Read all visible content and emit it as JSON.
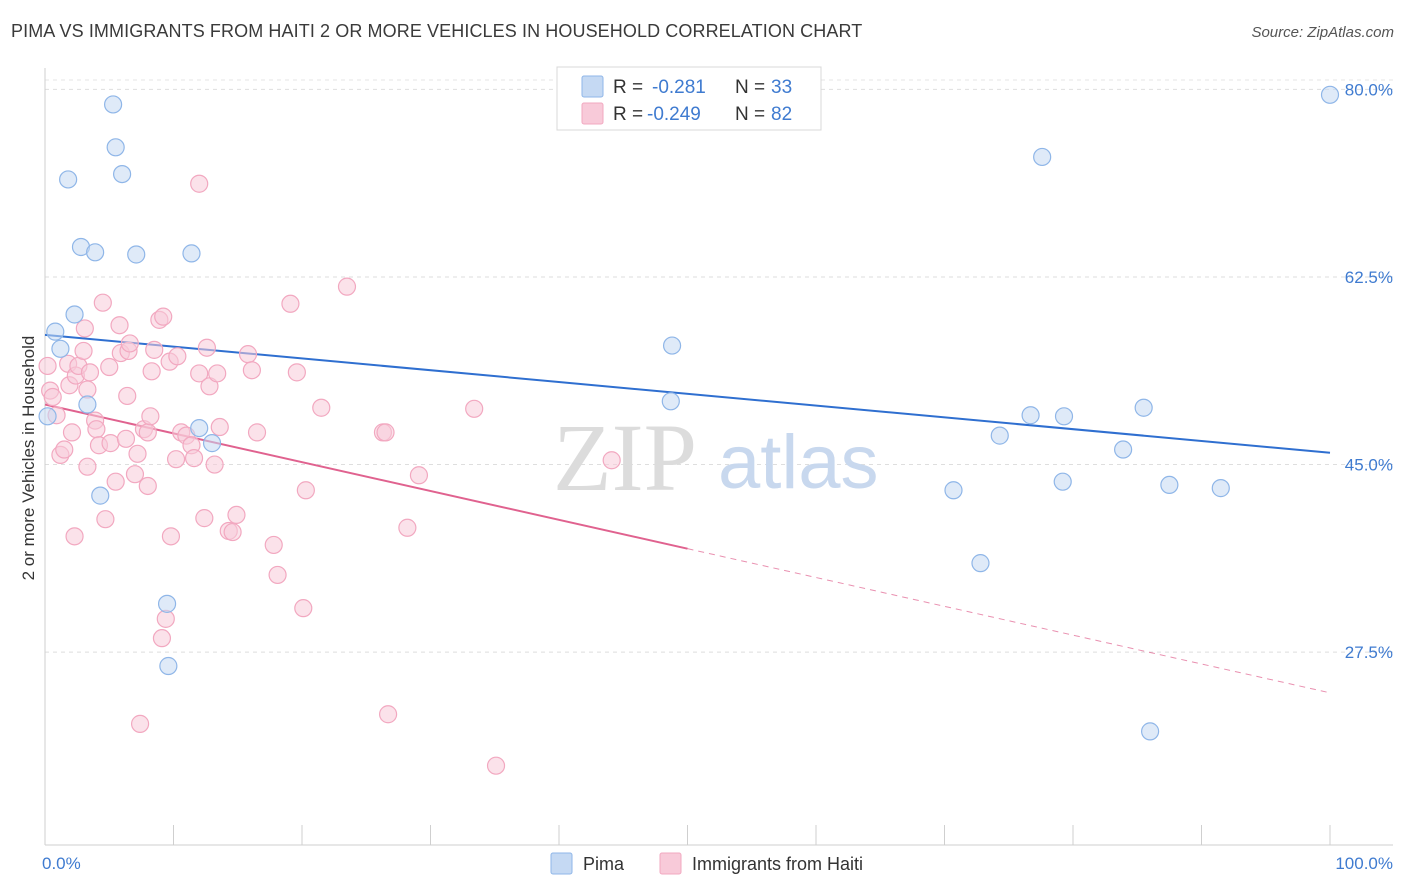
{
  "title": "PIMA VS IMMIGRANTS FROM HAITI 2 OR MORE VEHICLES IN HOUSEHOLD CORRELATION CHART",
  "source": "Source: ZipAtlas.com",
  "watermark": {
    "zip": "ZIP",
    "atlas": "atlas"
  },
  "chart_data": {
    "type": "scatter",
    "xlabel": "",
    "ylabel": "2 or more Vehicles in Household",
    "xlim": [
      0,
      100
    ],
    "ylim": [
      9.5,
      82
    ],
    "x_ticks": [
      {
        "value": 0,
        "label": "0.0%"
      },
      {
        "value": 100,
        "label": "100.0%"
      }
    ],
    "y_ticks": [
      {
        "value": 27.5,
        "label": "27.5%"
      },
      {
        "value": 45.0,
        "label": "45.0%"
      },
      {
        "value": 62.5,
        "label": "62.5%"
      },
      {
        "value": 80.0,
        "label": "80.0%"
      }
    ],
    "grid": true,
    "legend_position": "top-center",
    "legend": [
      {
        "r_label": "R =",
        "r_value": "-0.281",
        "n_label": "N =",
        "n_value": "33"
      },
      {
        "r_label": "R =",
        "r_value": "-0.249",
        "n_label": "N =",
        "n_value": "82"
      }
    ],
    "series": [
      {
        "name": "Pima",
        "color": "#8fb6e8",
        "fill": "#c5d9f3",
        "line_color": "#2f6fd0",
        "trend": {
          "x0": 0,
          "y0": 57.1,
          "x1": 100,
          "y1": 46.1,
          "solid_until": 100
        },
        "points": [
          [
            0.2,
            49.5
          ],
          [
            0.8,
            57.4
          ],
          [
            1.2,
            55.8
          ],
          [
            1.8,
            71.6
          ],
          [
            2.3,
            59.0
          ],
          [
            2.8,
            65.3
          ],
          [
            3.3,
            50.6
          ],
          [
            3.9,
            64.8
          ],
          [
            4.3,
            42.1
          ],
          [
            5.3,
            78.6
          ],
          [
            5.5,
            74.6
          ],
          [
            6.0,
            72.1
          ],
          [
            7.1,
            64.6
          ],
          [
            9.5,
            32.0
          ],
          [
            9.6,
            26.2
          ],
          [
            11.4,
            64.7
          ],
          [
            12.0,
            48.4
          ],
          [
            13.0,
            47.0
          ],
          [
            48.7,
            50.9
          ],
          [
            48.8,
            56.1
          ],
          [
            70.7,
            42.6
          ],
          [
            72.8,
            35.8
          ],
          [
            74.3,
            47.7
          ],
          [
            76.7,
            49.6
          ],
          [
            77.6,
            73.7
          ],
          [
            79.2,
            43.4
          ],
          [
            79.3,
            49.5
          ],
          [
            83.9,
            46.4
          ],
          [
            85.5,
            50.3
          ],
          [
            86.0,
            20.1
          ],
          [
            87.5,
            43.1
          ],
          [
            91.5,
            42.8
          ],
          [
            100.0,
            79.5
          ]
        ]
      },
      {
        "name": "Immigrants from Haiti",
        "color": "#f2a8c0",
        "fill": "#f8cad9",
        "line_color": "#e0628f",
        "trend": {
          "x0": 0,
          "y0": 50.6,
          "x1": 100,
          "y1": 23.7,
          "solid_until": 50
        },
        "points": [
          [
            0.2,
            54.2
          ],
          [
            0.4,
            51.9
          ],
          [
            0.6,
            51.3
          ],
          [
            0.9,
            49.6
          ],
          [
            1.2,
            45.9
          ],
          [
            1.5,
            46.4
          ],
          [
            1.8,
            54.4
          ],
          [
            1.9,
            52.4
          ],
          [
            2.1,
            48.0
          ],
          [
            2.3,
            38.3
          ],
          [
            2.4,
            53.3
          ],
          [
            2.6,
            54.2
          ],
          [
            3.0,
            55.6
          ],
          [
            3.1,
            57.7
          ],
          [
            3.3,
            52.0
          ],
          [
            3.3,
            44.8
          ],
          [
            3.5,
            53.6
          ],
          [
            3.9,
            49.1
          ],
          [
            4.0,
            48.3
          ],
          [
            4.2,
            46.8
          ],
          [
            4.5,
            60.1
          ],
          [
            4.7,
            39.9
          ],
          [
            5.0,
            54.1
          ],
          [
            5.1,
            47.0
          ],
          [
            5.5,
            43.4
          ],
          [
            5.8,
            58.0
          ],
          [
            5.9,
            55.4
          ],
          [
            6.3,
            47.4
          ],
          [
            6.4,
            51.4
          ],
          [
            6.5,
            55.6
          ],
          [
            6.6,
            56.3
          ],
          [
            7.0,
            44.1
          ],
          [
            7.2,
            46.0
          ],
          [
            7.4,
            20.8
          ],
          [
            7.7,
            48.3
          ],
          [
            8.0,
            43.0
          ],
          [
            8.0,
            48.0
          ],
          [
            8.2,
            49.5
          ],
          [
            8.3,
            53.7
          ],
          [
            8.5,
            55.7
          ],
          [
            8.9,
            58.5
          ],
          [
            9.1,
            28.8
          ],
          [
            9.2,
            58.8
          ],
          [
            9.4,
            30.6
          ],
          [
            9.7,
            54.6
          ],
          [
            9.8,
            38.3
          ],
          [
            10.2,
            45.5
          ],
          [
            10.3,
            55.1
          ],
          [
            10.6,
            48.0
          ],
          [
            11.0,
            47.7
          ],
          [
            11.4,
            46.8
          ],
          [
            11.6,
            45.6
          ],
          [
            12.0,
            53.5
          ],
          [
            12.0,
            71.2
          ],
          [
            12.4,
            40.0
          ],
          [
            12.6,
            55.9
          ],
          [
            12.8,
            52.3
          ],
          [
            13.2,
            45.0
          ],
          [
            13.4,
            53.5
          ],
          [
            13.6,
            48.5
          ],
          [
            14.3,
            38.8
          ],
          [
            14.6,
            38.7
          ],
          [
            14.9,
            40.3
          ],
          [
            15.8,
            55.3
          ],
          [
            16.1,
            53.8
          ],
          [
            16.5,
            48.0
          ],
          [
            17.8,
            37.5
          ],
          [
            18.1,
            34.7
          ],
          [
            19.1,
            60.0
          ],
          [
            19.6,
            53.6
          ],
          [
            20.1,
            31.6
          ],
          [
            20.3,
            42.6
          ],
          [
            21.5,
            50.3
          ],
          [
            23.5,
            61.6
          ],
          [
            26.3,
            48.0
          ],
          [
            26.5,
            48.0
          ],
          [
            26.7,
            21.7
          ],
          [
            28.2,
            39.1
          ],
          [
            29.1,
            44.0
          ],
          [
            33.4,
            50.2
          ],
          [
            35.1,
            16.9
          ],
          [
            44.1,
            45.4
          ]
        ]
      }
    ]
  }
}
